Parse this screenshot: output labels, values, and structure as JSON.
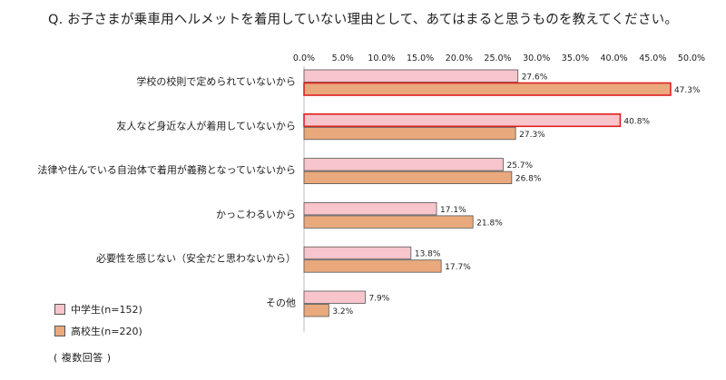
{
  "title": "Q. お子さまが乗車用ヘルメットを着用していない理由として、あてはまると思うものを教えてください。",
  "note": "( 複数回答 )",
  "colors": {
    "series_1_fill": "#f7c5cb",
    "series_2_fill": "#e9a97c",
    "bar_border": "#555555",
    "highlight_border": "#e02020"
  },
  "chart_data": {
    "type": "bar",
    "orientation": "horizontal",
    "categories": [
      "学校の校則で定められていないから",
      "友人など身近な人が着用していないから",
      "法律や住んでいる自治体で着用が義務となっていないから",
      "かっこわるいから",
      "必要性を感じない（安全だと思わないから）",
      "その他"
    ],
    "series": [
      {
        "name": "中学生(n=152)",
        "values": [
          27.6,
          40.8,
          25.7,
          17.1,
          13.8,
          7.9
        ],
        "labels": [
          "27.6%",
          "40.8%",
          "25.7%",
          "17.1%",
          "13.8%",
          "7.9%"
        ]
      },
      {
        "name": "高校生(n=220)",
        "values": [
          47.3,
          27.3,
          26.8,
          21.8,
          17.7,
          3.2
        ],
        "labels": [
          "47.3%",
          "27.3%",
          "26.8%",
          "21.8%",
          "17.7%",
          "3.2%"
        ]
      }
    ],
    "highlighted": [
      {
        "series": 1,
        "category": 0
      },
      {
        "series": 0,
        "category": 1
      }
    ],
    "xlim": [
      0,
      50
    ],
    "xticks": [
      0,
      5,
      10,
      15,
      20,
      25,
      30,
      35,
      40,
      45,
      50
    ],
    "xtick_labels": [
      "0.0%",
      "5.0%",
      "10.0%",
      "15.0%",
      "20.0%",
      "25.0%",
      "30.0%",
      "35.0%",
      "40.0%",
      "45.0%",
      "50.0%"
    ],
    "tick_position": "top",
    "legend_position": "bottom-left",
    "grid": false
  }
}
